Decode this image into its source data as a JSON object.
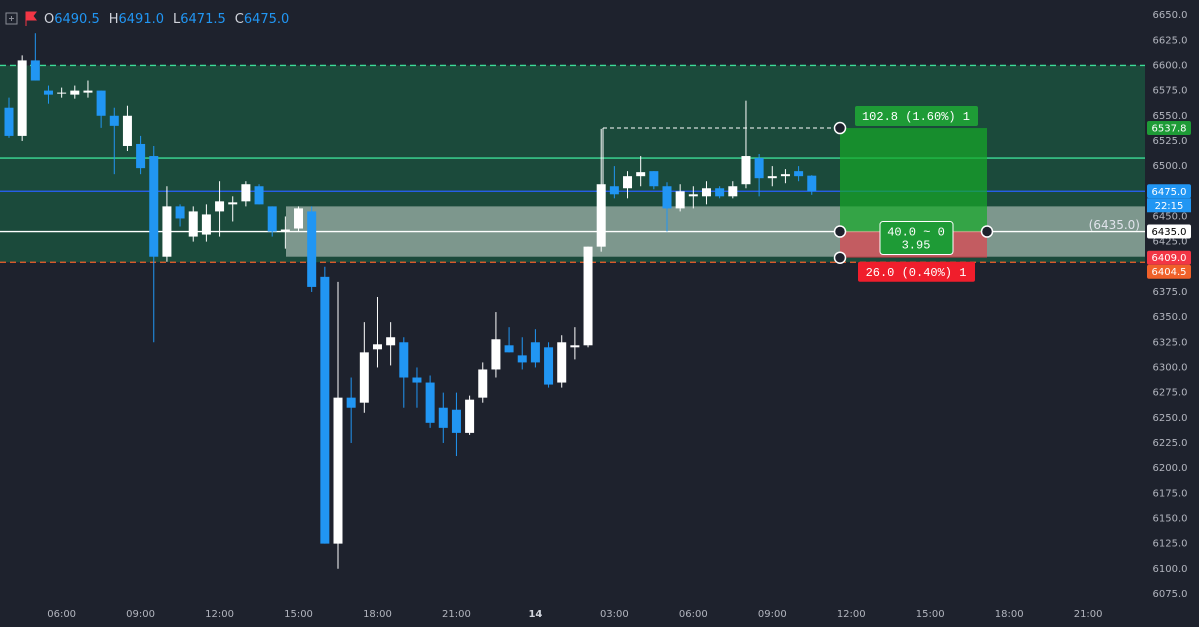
{
  "chart_data": {
    "type": "candlestick",
    "legend_ohlc": [
      {
        "name": "O",
        "value": 6490.5,
        "label": "6490.5"
      },
      {
        "name": "H",
        "value": 6491,
        "label": "6491.0"
      },
      {
        "name": "L",
        "value": 6471.5,
        "label": "6471.5"
      },
      {
        "name": "C",
        "value": 6475,
        "label": "6475.0"
      }
    ],
    "categories": [
      null,
      null,
      null,
      null,
      "06:00",
      null,
      null,
      null,
      null,
      null,
      "09:00",
      null,
      null,
      null,
      null,
      null,
      "12:00",
      null,
      null,
      null,
      null,
      null,
      "15:00",
      null,
      null,
      null,
      null,
      null,
      "18:00",
      null,
      null,
      null,
      null,
      null,
      "21:00",
      null,
      null,
      null,
      null,
      null,
      "14",
      null,
      null,
      null,
      null,
      null,
      "03:00",
      null,
      null,
      null,
      null,
      null,
      "06:00",
      null,
      null,
      null,
      null,
      null,
      "09:00",
      null,
      null,
      null,
      null,
      null,
      "12:00",
      null,
      null,
      null,
      null,
      null,
      "15:00",
      null,
      null,
      null,
      null,
      null,
      "18:00",
      null,
      null,
      null,
      null,
      null,
      "21:00",
      null,
      null,
      null,
      null
    ],
    "open": [
      6558,
      6530,
      6605,
      6575,
      6572,
      6571,
      6573,
      6575,
      6550,
      6520,
      6522,
      6510,
      6410,
      6460,
      6430,
      6432,
      6455,
      6462,
      6465,
      6480,
      6460,
      6435,
      6438,
      6455,
      6390,
      6125,
      6270,
      6265,
      6318,
      6322,
      6325,
      6290,
      6285,
      6260,
      6258,
      6235,
      6270,
      6298,
      6322,
      6312,
      6325,
      6320,
      6285,
      6320,
      6322,
      6420,
      6480,
      6478,
      6490,
      6495,
      6480,
      6458,
      6470,
      6470,
      6478,
      6470,
      6482,
      6508,
      6488,
      6490,
      6495,
      6490.5,
      null,
      null,
      null,
      null,
      null,
      null,
      null,
      null,
      null,
      null,
      null,
      null,
      null,
      null,
      null,
      null,
      null,
      null,
      null,
      null,
      null,
      null,
      null,
      null,
      null
    ],
    "high": [
      6568,
      6610,
      6632,
      6580,
      6578,
      6580,
      6585,
      6575,
      6558,
      6560,
      6530,
      6520,
      6480,
      6462,
      6460,
      6462,
      6485,
      6470,
      6485,
      6482,
      6460,
      6450,
      6460,
      6460,
      6400,
      6385,
      6290,
      6345,
      6370,
      6345,
      6330,
      6300,
      6292,
      6275,
      6275,
      6272,
      6305,
      6355,
      6340,
      6330,
      6338,
      6325,
      6332,
      6340,
      6420,
      6537,
      6500,
      6495,
      6510,
      6495,
      6484,
      6482,
      6480,
      6485,
      6480,
      6485,
      6565,
      6512,
      6500,
      6497,
      6500,
      6491,
      null,
      null,
      null,
      null,
      null,
      null,
      null,
      null,
      null,
      null,
      null,
      null,
      null,
      null,
      null,
      null,
      null,
      null,
      null,
      null,
      null,
      null,
      null,
      null,
      null
    ],
    "low": [
      6528,
      6525,
      6585,
      6562,
      6568,
      6567,
      6568,
      6538,
      6492,
      6515,
      6492,
      6325,
      6405,
      6440,
      6425,
      6425,
      6430,
      6445,
      6460,
      6462,
      6430,
      6418,
      6435,
      6375,
      6125,
      6100,
      6225,
      6255,
      6300,
      6302,
      6260,
      6260,
      6240,
      6225,
      6212,
      6233,
      6265,
      6290,
      6315,
      6298,
      6300,
      6280,
      6280,
      6308,
      6320,
      6415,
      6468,
      6468,
      6480,
      6477,
      6435,
      6455,
      6458,
      6462,
      6468,
      6468,
      6478,
      6470,
      6480,
      6483,
      6485,
      6471.5,
      null,
      null,
      null,
      null,
      null,
      null,
      null,
      null,
      null,
      null,
      null,
      null,
      null,
      null,
      null,
      null,
      null,
      null,
      null,
      null,
      null,
      null,
      null,
      null,
      null
    ],
    "close": [
      6530,
      6605,
      6585,
      6571,
      6573,
      6575,
      6575,
      6550,
      6540,
      6550,
      6498,
      6410,
      6460,
      6448,
      6455,
      6452,
      6465,
      6464,
      6482,
      6462,
      6435,
      6437,
      6458,
      6380,
      6125,
      6270,
      6260,
      6315,
      6323,
      6330,
      6290,
      6285,
      6245,
      6240,
      6235,
      6268,
      6298,
      6328,
      6315,
      6305,
      6305,
      6283,
      6325,
      6322,
      6420,
      6482,
      6472,
      6490,
      6494,
      6480,
      6458,
      6475,
      6472,
      6478,
      6470,
      6480,
      6510,
      6488,
      6490,
      6492,
      6490,
      6475,
      null,
      null,
      null,
      null,
      null,
      null,
      null,
      null,
      null,
      null,
      null,
      null,
      null,
      null,
      null,
      null,
      null,
      null,
      null,
      null,
      null,
      null,
      null,
      null,
      null
    ],
    "up_color": "#ffffff",
    "down_color": "#2196f3",
    "ylim": [
      6069,
      6665
    ],
    "yticks": [
      {
        "value": 6650,
        "label": "6650.0"
      },
      {
        "value": 6625,
        "label": "6625.0"
      },
      {
        "value": 6600,
        "label": "6600.0"
      },
      {
        "value": 6575,
        "label": "6575.0"
      },
      {
        "value": 6550,
        "label": "6550.0"
      },
      {
        "value": 6525,
        "label": "6525.0"
      },
      {
        "value": 6500,
        "label": "6500.0"
      },
      {
        "value": 6450,
        "label": "6450.0"
      },
      {
        "value": 6425,
        "label": "6425.0"
      },
      {
        "value": 6375,
        "label": "6375.0"
      },
      {
        "value": 6350,
        "label": "6350.0"
      },
      {
        "value": 6325,
        "label": "6325.0"
      },
      {
        "value": 6300,
        "label": "6300.0"
      },
      {
        "value": 6275,
        "label": "6275.0"
      },
      {
        "value": 6250,
        "label": "6250.0"
      },
      {
        "value": 6225,
        "label": "6225.0"
      },
      {
        "value": 6200,
        "label": "6200.0"
      },
      {
        "value": 6175,
        "label": "6175.0"
      },
      {
        "value": 6150,
        "label": "6150.0"
      },
      {
        "value": 6125,
        "label": "6125.0"
      },
      {
        "value": 6100,
        "label": "6100.0"
      },
      {
        "value": 6075,
        "label": "6075.0"
      }
    ],
    "grid": false,
    "zone": {
      "from": 6600,
      "to": 6404.5,
      "color": "#1b4a3b"
    },
    "range_box": {
      "from": 6460,
      "to": 6410,
      "color": "rgba(205,215,210,0.55)"
    },
    "levels": [
      {
        "value": 6600,
        "color": "#3ddc97",
        "dashed": true
      },
      {
        "value": 6508,
        "color": "#3ddc97",
        "dashed": false
      },
      {
        "value": 6475,
        "color": "#2962ff",
        "dashed": false
      },
      {
        "value": 6435,
        "color": "#ffffff",
        "dashed": false
      },
      {
        "value": 6404.5,
        "color": "#f0612a",
        "dashed": true
      }
    ],
    "position": {
      "target": 6537.8,
      "entry": 6435,
      "stop": 6409,
      "profit_color": "rgba(22,170,40,0.7)",
      "loss_color": "rgba(242,54,69,0.6)",
      "target_label": "102.8 (1.60%) 1",
      "stop_label": "26.0 (0.40%) 1",
      "center_label": [
        "40.0 ~ 0",
        "3.95"
      ],
      "entry_label": "(6435.0)"
    },
    "price_badges": [
      {
        "value": 6537.8,
        "label": "6537.8",
        "color": "#1e9b36",
        "text_color": "#ffffff"
      },
      {
        "value": 6475,
        "label": "6475.0",
        "color": "#2196f3",
        "text_color": "#ffffff"
      },
      {
        "value": 6435,
        "label": "6435.0",
        "color": "#ffffff",
        "text_color": "#000000"
      },
      {
        "value": 6409,
        "label": "6409.0",
        "color": "#f23645",
        "text_color": "#ffffff"
      },
      {
        "value": 6404.5,
        "label": "6404.5",
        "color": "#f0612a",
        "text_color": "#ffffff"
      }
    ],
    "countdown": "22:15"
  }
}
